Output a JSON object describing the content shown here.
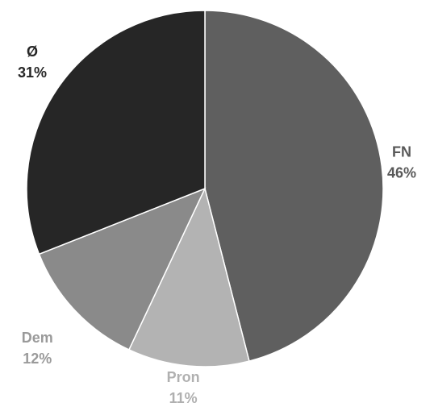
{
  "chart_data": {
    "type": "pie",
    "title": "",
    "start_angle_deg": 0,
    "direction": "clockwise",
    "slices": [
      {
        "category": "FN",
        "value": 46,
        "percent_label": "46%",
        "color": "#5f5f5f",
        "label_color": "#595959"
      },
      {
        "category": "Pron",
        "value": 11,
        "percent_label": "11%",
        "color": "#b3b3b3",
        "label_color": "#b0b0b0"
      },
      {
        "category": "Dem",
        "value": 12,
        "percent_label": "12%",
        "color": "#8a8a8a",
        "label_color": "#9a9a9a"
      },
      {
        "category": "Ø",
        "value": 31,
        "percent_label": "31%",
        "color": "#262626",
        "label_color": "#262626"
      }
    ]
  }
}
